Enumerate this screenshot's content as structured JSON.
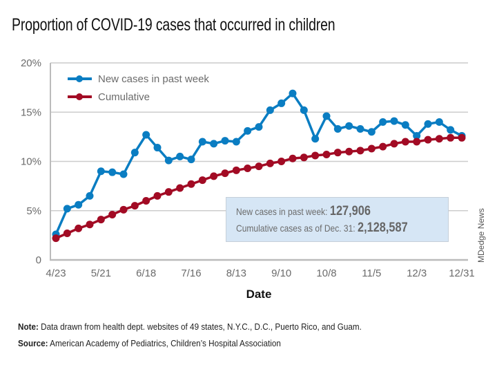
{
  "header": {
    "title": "Proportion of COVID-19 cases that occurred in children"
  },
  "annotation": {
    "new_label": "New cases in past week: ",
    "new_value": "127,906",
    "cum_label": "Cumulative cases as of Dec. 31: ",
    "cum_value": "2,128,587"
  },
  "credit": "MDedge News",
  "footer": {
    "note_label": "Note:",
    "note_text": " Data drawn from health dept. websites of 49 states, N.Y.C., D.C., Puerto Rico, and Guam.",
    "source_label": "Source:",
    "source_text": " American Academy of Pediatrics, Children’s Hospital Association"
  },
  "colors": {
    "new_cases": "#0a7dc2",
    "cumulative": "#a20b24",
    "grid": "#cccccc",
    "axis": "#bbbbbb"
  },
  "chart_data": {
    "type": "line",
    "title": "Proportion of COVID-19 cases that occurred in children",
    "xlabel": "Date",
    "ylabel": "",
    "ylim": [
      0,
      20
    ],
    "yticks": [
      0,
      5,
      10,
      15,
      20
    ],
    "ytick_labels": [
      "0",
      "5%",
      "10%",
      "15%",
      "20%"
    ],
    "xtick_labels": [
      "4/23",
      "5/21",
      "6/18",
      "7/16",
      "8/13",
      "9/10",
      "10/8",
      "11/5",
      "12/3",
      "12/31"
    ],
    "xtick_indices": [
      0,
      4,
      8,
      12,
      16,
      20,
      24,
      28,
      32,
      36
    ],
    "grid": true,
    "legend_position": "top-left",
    "x": [
      "4/23",
      "4/30",
      "5/7",
      "5/14",
      "5/21",
      "5/28",
      "6/4",
      "6/11",
      "6/18",
      "6/25",
      "7/2",
      "7/9",
      "7/16",
      "7/23",
      "7/30",
      "8/6",
      "8/13",
      "8/20",
      "8/27",
      "9/3",
      "9/10",
      "9/17",
      "9/24",
      "10/1",
      "10/8",
      "10/15",
      "10/22",
      "10/29",
      "11/5",
      "11/12",
      "11/19",
      "11/26",
      "12/3",
      "12/10",
      "12/17",
      "12/24",
      "12/31"
    ],
    "series": [
      {
        "name": "New cases in past week",
        "color": "#0a7dc2",
        "values": [
          2.6,
          5.2,
          5.6,
          6.5,
          9.0,
          8.9,
          8.7,
          10.9,
          12.7,
          11.4,
          10.1,
          10.5,
          10.2,
          12.0,
          11.8,
          12.1,
          12.0,
          13.1,
          13.5,
          15.2,
          15.9,
          16.9,
          15.2,
          12.3,
          14.6,
          13.3,
          13.6,
          13.3,
          13.0,
          14.0,
          14.1,
          13.7,
          12.6,
          13.8,
          14.0,
          13.2,
          12.6
        ]
      },
      {
        "name": "Cumulative",
        "color": "#a20b24",
        "values": [
          2.2,
          2.7,
          3.2,
          3.6,
          4.1,
          4.6,
          5.1,
          5.5,
          6.0,
          6.5,
          6.9,
          7.3,
          7.7,
          8.1,
          8.5,
          8.8,
          9.1,
          9.3,
          9.5,
          9.8,
          10.0,
          10.3,
          10.4,
          10.6,
          10.7,
          10.9,
          11.0,
          11.1,
          11.3,
          11.5,
          11.8,
          12.0,
          12.0,
          12.2,
          12.3,
          12.4,
          12.4
        ]
      }
    ]
  }
}
